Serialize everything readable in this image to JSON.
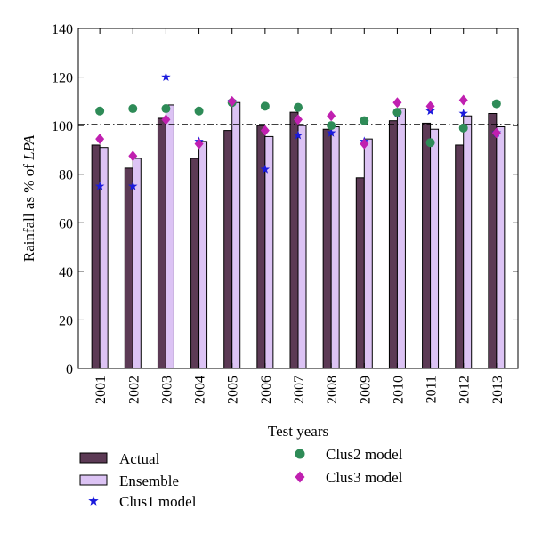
{
  "chart_data": {
    "type": "bar",
    "categories": [
      "2001",
      "2002",
      "2003",
      "2004",
      "2005",
      "2006",
      "2007",
      "2008",
      "2009",
      "2010",
      "2011",
      "2012",
      "2013"
    ],
    "xlabel": "Test years",
    "ylabel_prefix": "Rainfall as % of ",
    "ylabel_italic": "LPA",
    "ylim": [
      0,
      140
    ],
    "yticks": [
      0,
      20,
      40,
      60,
      80,
      100,
      120,
      140
    ],
    "reference_line": 100.5,
    "grid": false,
    "legend_position": "bottom",
    "series": [
      {
        "name": "Actual",
        "kind": "bar",
        "color": "#5c3a55",
        "values": [
          92,
          82.5,
          103,
          86.5,
          98,
          100,
          105.5,
          98.5,
          78.5,
          102,
          101,
          92,
          105
        ]
      },
      {
        "name": "Ensemble",
        "kind": "bar",
        "color": "#dcc3f4",
        "values": [
          91,
          86.5,
          108.5,
          93.5,
          109.5,
          95.5,
          100,
          99.5,
          94.5,
          107,
          98.5,
          104,
          99.5
        ]
      },
      {
        "name": "Clus1 model",
        "kind": "scatter",
        "marker": "star",
        "color": "#1a1adc",
        "values": [
          75,
          75,
          120,
          93.5,
          110,
          82,
          96,
          97,
          93.5,
          105,
          106,
          105,
          97
        ]
      },
      {
        "name": "Clus2 model",
        "kind": "scatter",
        "marker": "circle",
        "color": "#2e8b57",
        "values": [
          106,
          107,
          107,
          106,
          109.5,
          108,
          107.5,
          100,
          102,
          105.5,
          93,
          99,
          109
        ]
      },
      {
        "name": "Clus3 model",
        "kind": "scatter",
        "marker": "diamond",
        "color": "#c020b0",
        "values": [
          94.5,
          87.5,
          102.5,
          92.5,
          110,
          98,
          102.5,
          104,
          92.5,
          109.5,
          108,
          110.5,
          97
        ]
      }
    ]
  }
}
